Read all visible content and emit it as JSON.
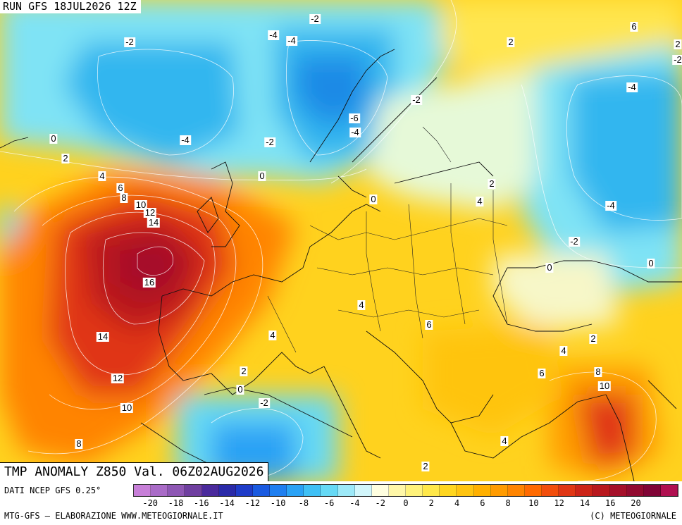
{
  "header": {
    "run_label": "RUN GFS 18JUL2026 12Z"
  },
  "map": {
    "title": "TMP ANOMALY Z850 Val. 06Z02AUG2026",
    "contour_labels": [
      {
        "id": "tl-1",
        "text": "-2"
      },
      {
        "id": "tl-2",
        "text": "-4"
      },
      {
        "id": "tl-3",
        "text": "-4"
      },
      {
        "id": "tl-4",
        "text": "-2"
      },
      {
        "id": "tl-5",
        "text": "0"
      },
      {
        "id": "tl-6",
        "text": "2"
      },
      {
        "id": "tl-7",
        "text": "4"
      },
      {
        "id": "tl-8",
        "text": "6"
      },
      {
        "id": "tl-9",
        "text": "8"
      },
      {
        "id": "tl-10",
        "text": "10"
      },
      {
        "id": "tl-11",
        "text": "12"
      },
      {
        "id": "tl-12",
        "text": "14"
      },
      {
        "id": "tl-13",
        "text": "16"
      },
      {
        "id": "tl-14",
        "text": "-4"
      },
      {
        "id": "tl-15",
        "text": "-2"
      },
      {
        "id": "tl-16",
        "text": "0"
      },
      {
        "id": "tl-17",
        "text": "-6"
      },
      {
        "id": "tl-18",
        "text": "-4"
      },
      {
        "id": "tl-19",
        "text": "-2"
      },
      {
        "id": "tl-20",
        "text": "0"
      },
      {
        "id": "tl-21",
        "text": "2"
      },
      {
        "id": "tl-22",
        "text": "2"
      },
      {
        "id": "tl-23",
        "text": "4"
      },
      {
        "id": "tl-24",
        "text": "6"
      },
      {
        "id": "tl-25",
        "text": "-4"
      },
      {
        "id": "tl-26",
        "text": "-4"
      },
      {
        "id": "tl-27",
        "text": "-2"
      },
      {
        "id": "tl-28",
        "text": "0"
      },
      {
        "id": "tl-29",
        "text": "0"
      },
      {
        "id": "tl-30",
        "text": "14"
      },
      {
        "id": "tl-31",
        "text": "12"
      },
      {
        "id": "tl-32",
        "text": "10"
      },
      {
        "id": "tl-33",
        "text": "8"
      },
      {
        "id": "tl-34",
        "text": "4"
      },
      {
        "id": "tl-35",
        "text": "2"
      },
      {
        "id": "tl-36",
        "text": "0"
      },
      {
        "id": "tl-37",
        "text": "-2"
      },
      {
        "id": "tl-38",
        "text": "4"
      },
      {
        "id": "tl-39",
        "text": "6"
      },
      {
        "id": "tl-40",
        "text": "2"
      },
      {
        "id": "tl-41",
        "text": "4"
      },
      {
        "id": "tl-42",
        "text": "6"
      },
      {
        "id": "tl-43",
        "text": "8"
      },
      {
        "id": "tl-44",
        "text": "10"
      },
      {
        "id": "tl-45",
        "text": "4"
      },
      {
        "id": "tl-46",
        "text": "2"
      },
      {
        "id": "tl-47",
        "text": "-2"
      },
      {
        "id": "tl-48",
        "text": "2"
      }
    ]
  },
  "legend": {
    "source": "DATI NCEP GFS 0.25°",
    "tick_labels": [
      "-20",
      "-18",
      "-16",
      "-14",
      "-12",
      "-10",
      "-8",
      "-6",
      "-4",
      "-2",
      "0",
      "2",
      "4",
      "6",
      "8",
      "10",
      "12",
      "14",
      "16",
      "20"
    ],
    "colors": [
      "#c77fd8",
      "#a96bc7",
      "#8e57b4",
      "#6f3fa0",
      "#4a2a9c",
      "#2a2aa8",
      "#1f3cc8",
      "#1a5ae0",
      "#1f7ff0",
      "#2aa2f5",
      "#3fc0f5",
      "#66d9f5",
      "#9de9f8",
      "#d2f6fb",
      "#ffffe0",
      "#fff7a8",
      "#fff27a",
      "#ffe84a",
      "#ffd620",
      "#ffc410",
      "#ffb000",
      "#ff9b00",
      "#ff8400",
      "#ff6a00",
      "#f24e0c",
      "#e03614",
      "#cc2418",
      "#b8181e",
      "#a5102a",
      "#920a30",
      "#800436",
      "#b01050"
    ],
    "credit_left": "MTG-GFS — ELABORAZIONE WWW.METEOGIORNALE.IT",
    "credit_right": "(C) METEOGIORNALE"
  }
}
